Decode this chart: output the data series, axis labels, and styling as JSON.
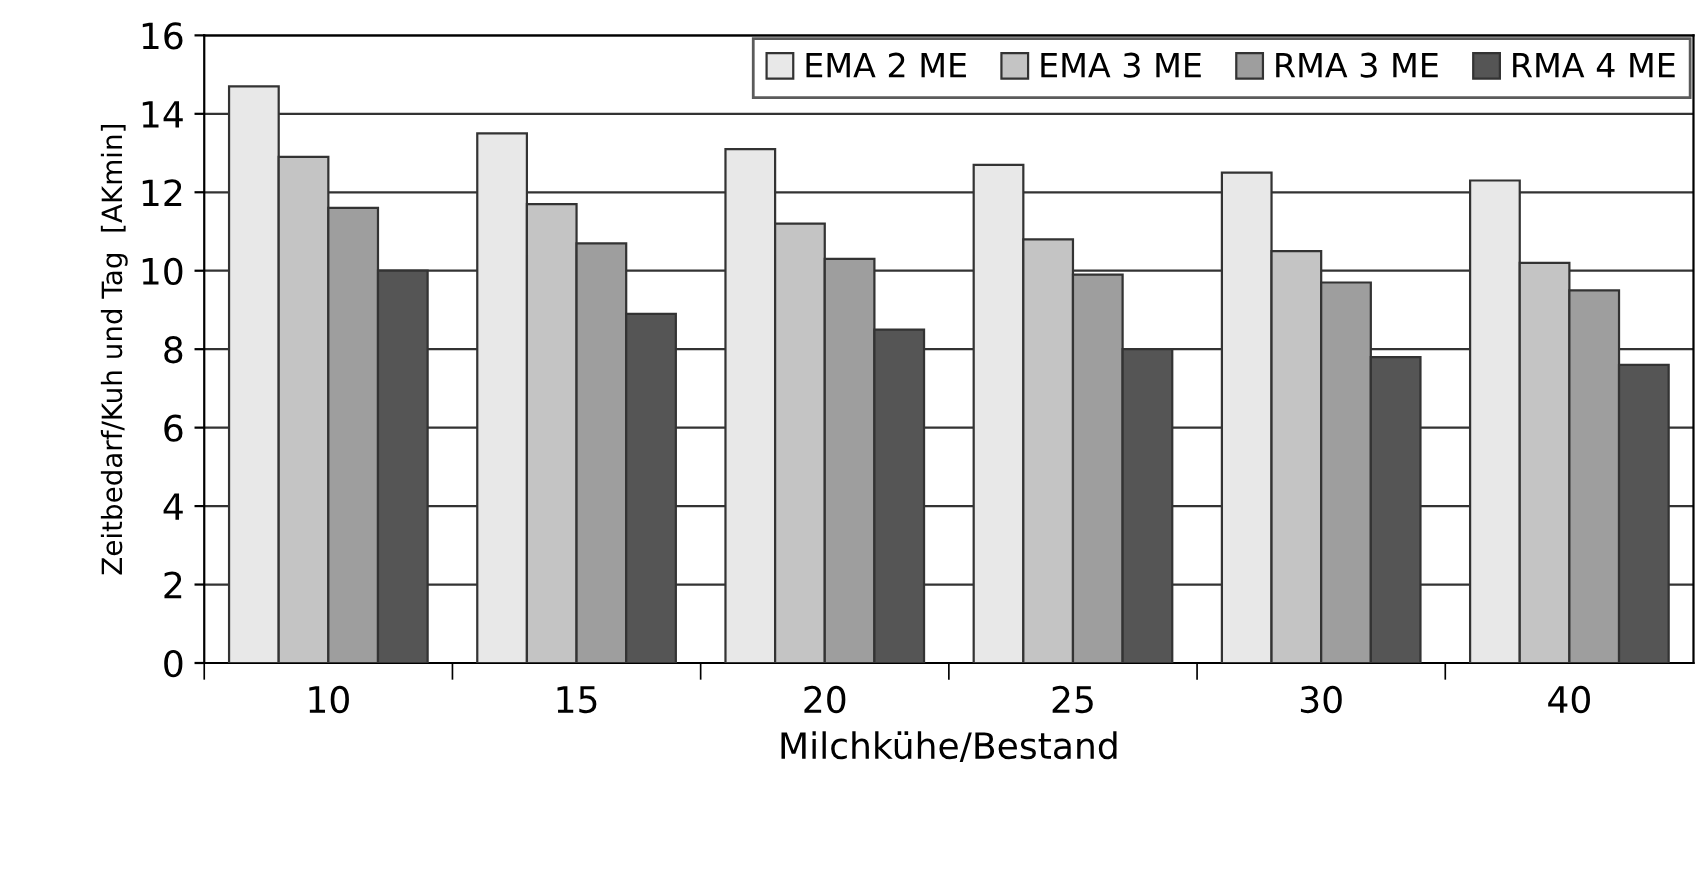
{
  "chart_data": {
    "type": "bar",
    "xlabel": "Milchkühe/Bestand",
    "ylabel": "Zeitbedarf/Kuh und Tag  [AKmin]",
    "categories": [
      "10",
      "15",
      "20",
      "25",
      "30",
      "40"
    ],
    "series": [
      {
        "name": "EMA 2 ME",
        "color": "#e8e8e8",
        "values": [
          14.7,
          13.5,
          13.1,
          12.7,
          12.5,
          12.3
        ]
      },
      {
        "name": "EMA 3 ME",
        "color": "#c4c4c4",
        "values": [
          12.9,
          11.7,
          11.2,
          10.8,
          10.5,
          10.2
        ]
      },
      {
        "name": "RMA 3 ME",
        "color": "#9e9e9e",
        "values": [
          11.6,
          10.7,
          10.3,
          9.9,
          9.7,
          9.5
        ]
      },
      {
        "name": "RMA 4 ME",
        "color": "#555555",
        "values": [
          10.0,
          8.9,
          8.5,
          8.0,
          7.8,
          7.6
        ]
      }
    ],
    "ylim": [
      0,
      16
    ],
    "yticks": [
      0,
      2,
      4,
      6,
      8,
      10,
      12,
      14,
      16
    ],
    "grid": "y",
    "legend": "top right"
  }
}
